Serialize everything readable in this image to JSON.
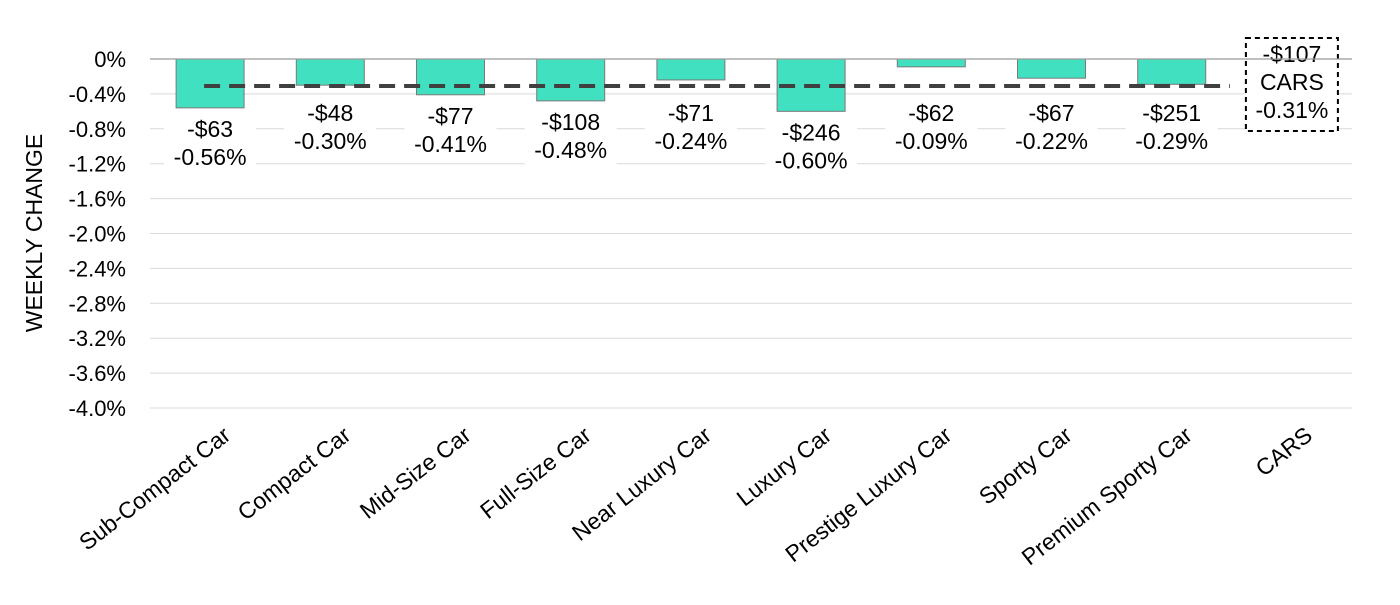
{
  "chart_data": {
    "type": "bar",
    "ylabel": "WEEKLY CHANGE",
    "xlabel": "",
    "title": "",
    "ylim": [
      -4.0,
      0
    ],
    "y_ticks": [
      "0%",
      "-0.4%",
      "-0.8%",
      "-1.2%",
      "-1.6%",
      "-2.0%",
      "-2.4%",
      "-2.8%",
      "-3.2%",
      "-3.6%",
      "-4.0%"
    ],
    "grid": true,
    "categories": [
      "Sub-Compact Car",
      "Compact Car",
      "Mid-Size Car",
      "Full-Size Car",
      "Near Luxury Car",
      "Luxury Car",
      "Prestige Luxury Car",
      "Sporty Car",
      "Premium Sporty Car",
      "CARS"
    ],
    "values": [
      -0.56,
      -0.3,
      -0.41,
      -0.48,
      -0.24,
      -0.6,
      -0.09,
      -0.22,
      -0.29,
      null
    ],
    "dollar_labels": [
      "-$63",
      "-$48",
      "-$77",
      "-$108",
      "-$71",
      "-$246",
      "-$62",
      "-$67",
      "-$251",
      "-$107"
    ],
    "percent_labels": [
      "-0.56%",
      "-0.30%",
      "-0.41%",
      "-0.48%",
      "-0.24%",
      "-0.60%",
      "-0.09%",
      "-0.22%",
      "-0.29%",
      "-0.31%"
    ],
    "reference_line": {
      "value": -0.31
    },
    "summary_box": {
      "dollar": "-$107",
      "name": "CARS",
      "percent": "-0.31%"
    },
    "colors": {
      "bar_fill": "#40E0C0",
      "bar_stroke": "#7a7a7a",
      "reference_line": "#404040",
      "grid": "#d9d9d9"
    }
  }
}
